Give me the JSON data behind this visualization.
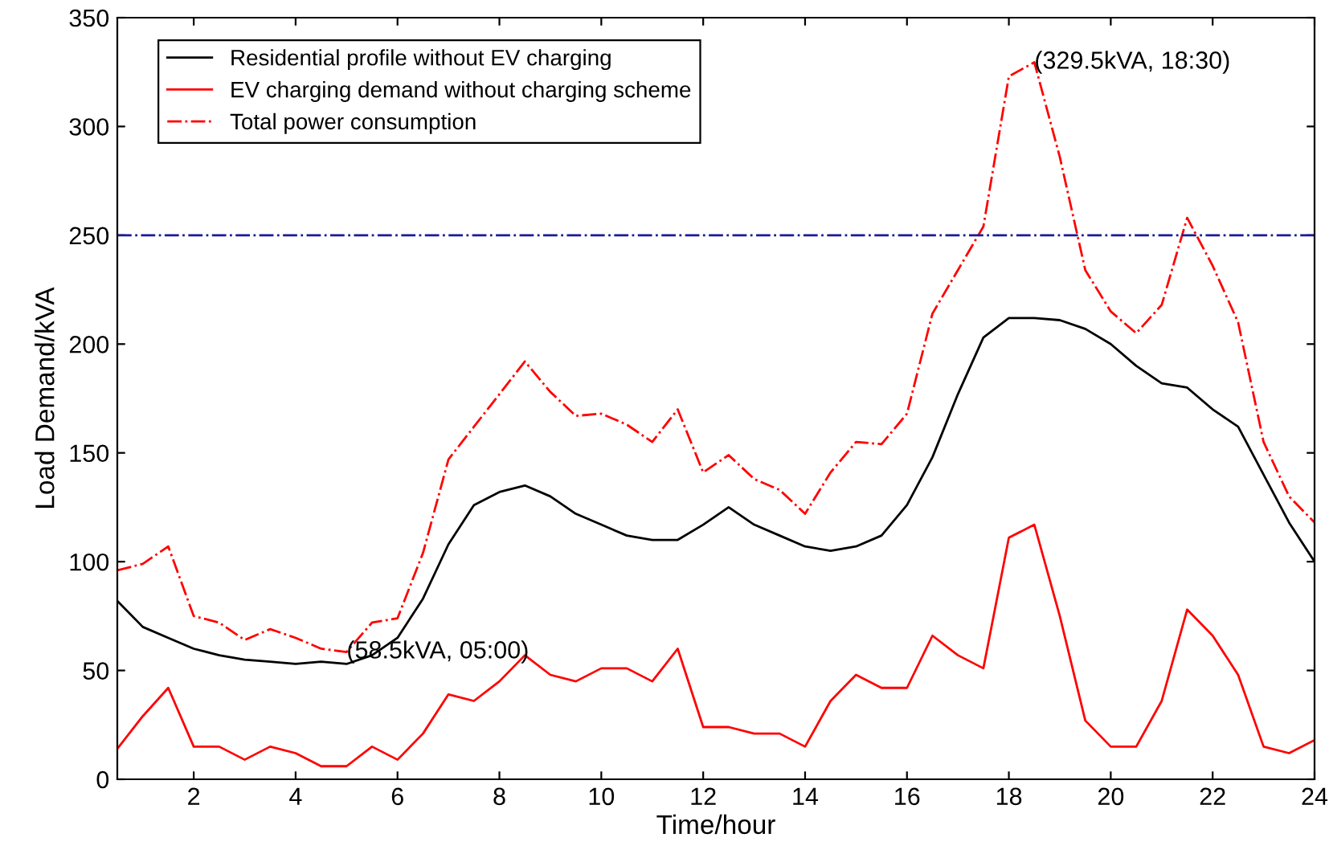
{
  "chart_data": {
    "type": "line",
    "xlabel": "Time/hour",
    "ylabel": "Load Demand/kVA",
    "x": [
      0.5,
      1,
      1.5,
      2,
      2.5,
      3,
      3.5,
      4,
      4.5,
      5,
      5.5,
      6,
      6.5,
      7,
      7.5,
      8,
      8.5,
      9,
      9.5,
      10,
      10.5,
      11,
      11.5,
      12,
      12.5,
      13,
      13.5,
      14,
      14.5,
      15,
      15.5,
      16,
      16.5,
      17,
      17.5,
      18,
      18.5,
      19,
      19.5,
      20,
      20.5,
      21,
      21.5,
      22,
      22.5,
      23,
      23.5,
      24
    ],
    "series": [
      {
        "name": "Residential profile without EV charging",
        "color": "#000000",
        "line_style": "solid",
        "values": [
          82,
          70,
          65,
          60,
          57,
          55,
          54,
          53,
          54,
          53,
          57,
          65,
          83,
          108,
          126,
          132,
          135,
          130,
          122,
          117,
          112,
          110,
          110,
          117,
          125,
          117,
          112,
          107,
          105,
          107,
          112,
          126,
          148,
          177,
          203,
          212,
          212,
          211,
          207,
          200,
          190,
          182,
          180,
          170,
          162,
          140,
          118,
          100
        ]
      },
      {
        "name": "EV charging demand without charging scheme",
        "color": "#ff0000",
        "line_style": "solid",
        "values": [
          14,
          29,
          42,
          15,
          15,
          9,
          15,
          12,
          6,
          6,
          15,
          9,
          21,
          39,
          36,
          45,
          57,
          48,
          45,
          51,
          51,
          45,
          60,
          24,
          24,
          21,
          21,
          15,
          36,
          48,
          42,
          42,
          66,
          57,
          51,
          111,
          117,
          75,
          27,
          15,
          15,
          36,
          78,
          66,
          48,
          15,
          12,
          18
        ]
      },
      {
        "name": "Total power consumption",
        "color": "#ff0000",
        "line_style": "dashdot",
        "values": [
          96,
          99,
          107,
          75,
          72,
          64,
          69,
          65,
          60,
          58.5,
          72,
          74,
          104,
          147,
          162,
          177,
          192,
          178,
          167,
          168,
          163,
          155,
          170,
          141,
          149,
          138,
          133,
          122,
          141,
          155,
          154,
          168,
          214,
          234,
          254,
          323,
          329.5,
          286,
          234,
          215,
          205,
          218,
          258,
          236,
          210,
          155,
          130,
          118
        ]
      }
    ],
    "ref_lines": [
      {
        "axis": "y",
        "value": 250,
        "color": "#1a1a99",
        "line_style": "dashdot"
      }
    ],
    "annotations": [
      {
        "text": "(58.5kVA, 05:00)",
        "x": 5,
        "y": 58.5
      },
      {
        "text": "(329.5kVA, 18:30)",
        "x": 18.5,
        "y": 329.5
      }
    ],
    "xlim": [
      0.5,
      24
    ],
    "xticks": [
      2,
      4,
      6,
      8,
      10,
      12,
      14,
      16,
      18,
      20,
      22,
      24
    ],
    "ylim": [
      0,
      350
    ],
    "yticks": [
      0,
      50,
      100,
      150,
      200,
      250,
      300,
      350
    ],
    "grid": false,
    "legend": "top left",
    "marker": "none"
  }
}
